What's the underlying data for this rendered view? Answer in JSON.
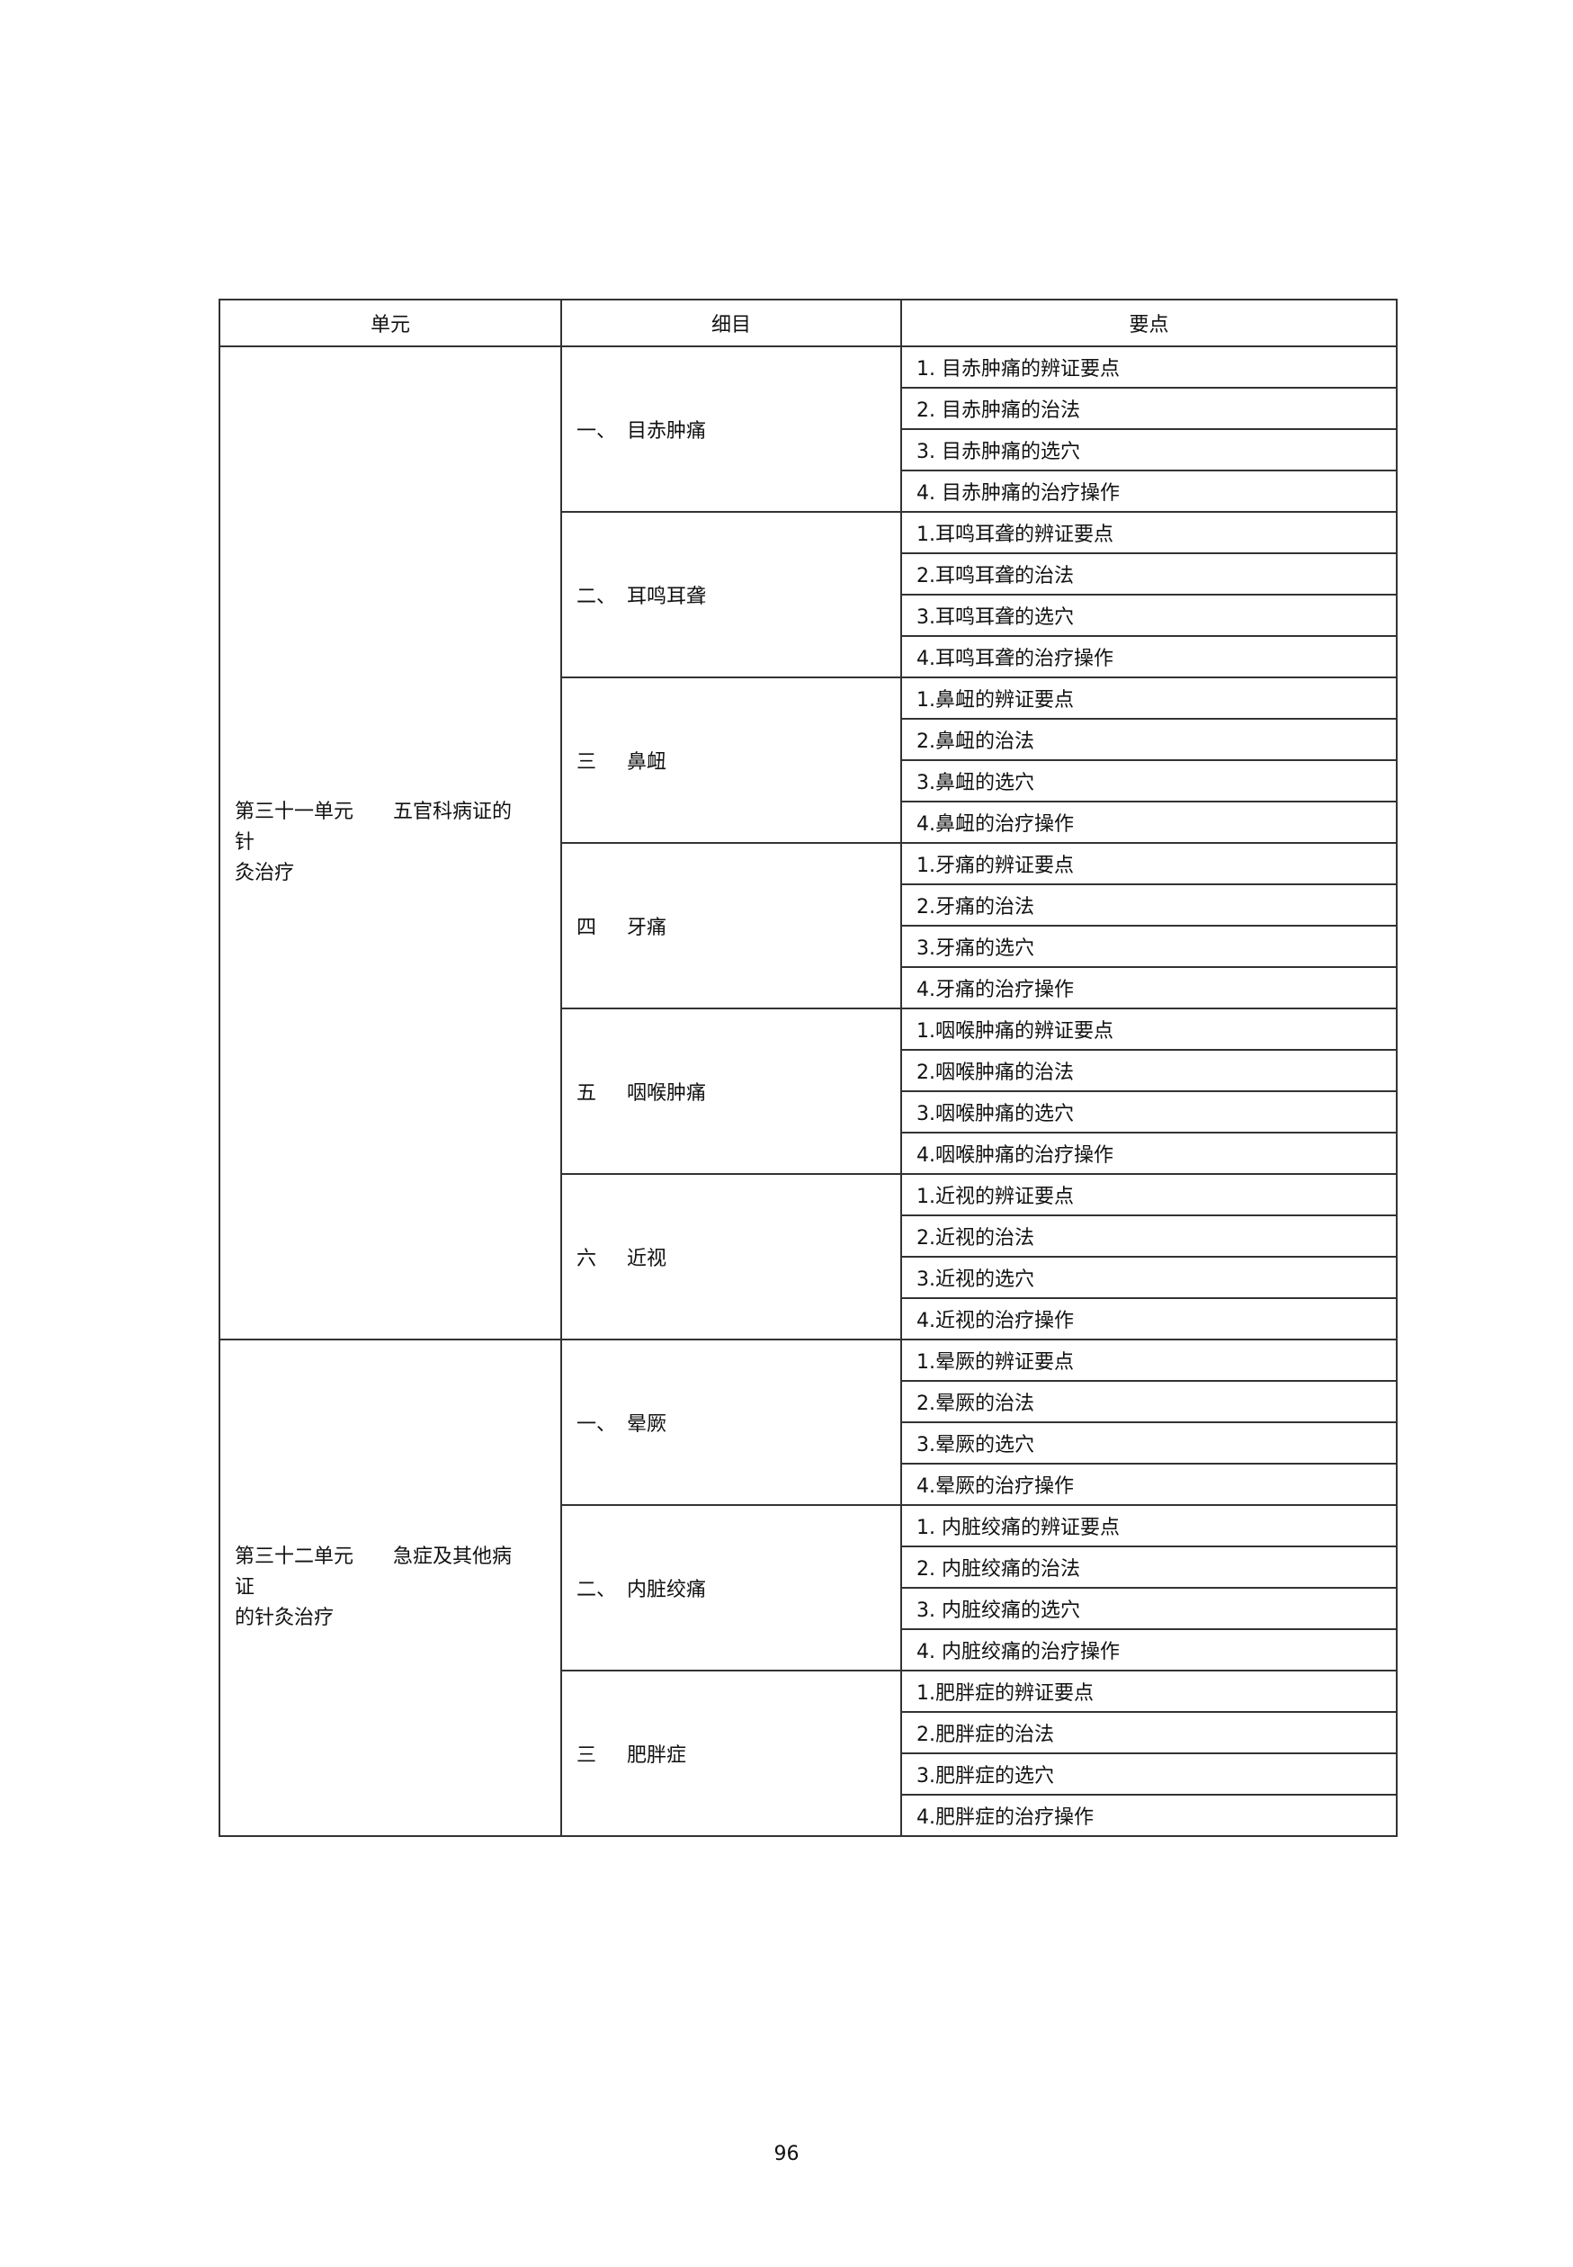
{
  "headers": [
    "单元",
    "细目",
    "要点"
  ],
  "units": [
    {
      "title_lines": [
        "第三十一单元　　五官科病证的",
        "针",
        "灸治疗"
      ],
      "items": [
        {
          "num": "一、",
          "name": "目赤肿痛",
          "points": [
            "1. 目赤肿痛的辨证要点",
            "2. 目赤肿痛的治法",
            "3. 目赤肿痛的选穴",
            "4. 目赤肿痛的治疗操作"
          ]
        },
        {
          "num": "二、",
          "name": "耳鸣耳聋",
          "points": [
            "1.耳鸣耳聋的辨证要点",
            "2.耳鸣耳聋的治法",
            "3.耳鸣耳聋的选穴",
            "4.耳鸣耳聋的治疗操作"
          ]
        },
        {
          "num": "三",
          "name": "鼻衄",
          "points": [
            "1.鼻衄的辨证要点",
            "2.鼻衄的治法",
            "3.鼻衄的选穴",
            "4.鼻衄的治疗操作"
          ]
        },
        {
          "num": "四",
          "name": "牙痛",
          "points": [
            "1.牙痛的辨证要点",
            "2.牙痛的治法",
            "3.牙痛的选穴",
            "4.牙痛的治疗操作"
          ]
        },
        {
          "num": "五",
          "name": "咽喉肿痛",
          "points": [
            "1.咽喉肿痛的辨证要点",
            "2.咽喉肿痛的治法",
            "3.咽喉肿痛的选穴",
            "4.咽喉肿痛的治疗操作"
          ]
        },
        {
          "num": "六",
          "name": "近视",
          "points": [
            "1.近视的辨证要点",
            "2.近视的治法",
            "3.近视的选穴",
            "4.近视的治疗操作"
          ]
        }
      ]
    },
    {
      "title_lines": [
        "第三十二单元　　急症及其他病",
        "证",
        "的针灸治疗"
      ],
      "items": [
        {
          "num": "一、",
          "name": "晕厥",
          "points": [
            "1.晕厥的辨证要点",
            "2.晕厥的治法",
            "3.晕厥的选穴",
            "4.晕厥的治疗操作"
          ]
        },
        {
          "num": "二、",
          "name": "内脏绞痛",
          "points": [
            "1. 内脏绞痛的辨证要点",
            "2. 内脏绞痛的治法",
            "3. 内脏绞痛的选穴",
            "4. 内脏绞痛的治疗操作"
          ]
        },
        {
          "num": "三",
          "name": "肥胖症",
          "points": [
            "1.肥胖症的辨证要点",
            "2.肥胖症的治法",
            "3.肥胖症的选穴",
            "4.肥胖症的治疗操作"
          ]
        }
      ]
    }
  ],
  "page_number": "96"
}
